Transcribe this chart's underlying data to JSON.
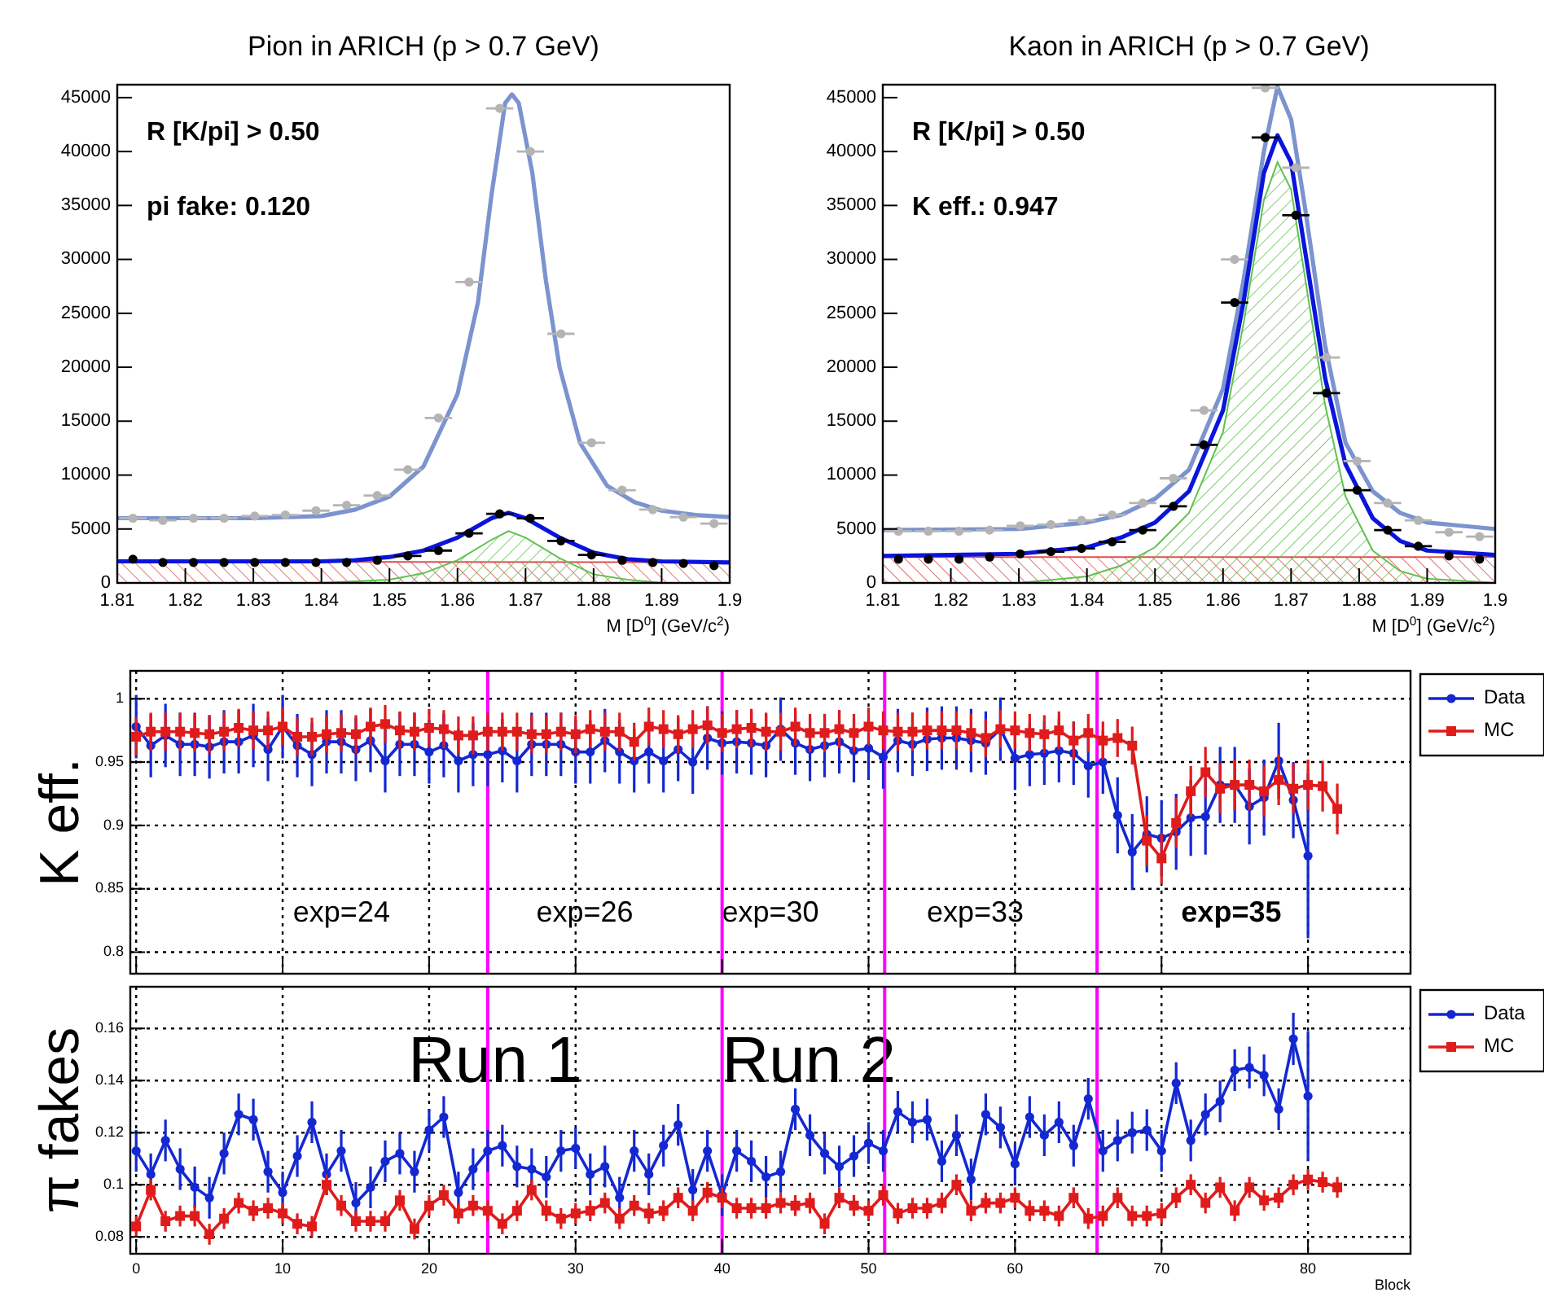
{
  "chart_data": [
    {
      "type": "scatter",
      "title": "Pion in ARICH (p > 0.7 GeV)",
      "xlabel": "M [D$^{0}$] (GeV/c$^{2}$)",
      "xlim": [
        1.81,
        1.9
      ],
      "xticks": [
        1.81,
        1.82,
        1.83,
        1.84,
        1.85,
        1.86,
        1.87,
        1.88,
        1.89,
        1.9
      ],
      "ylim": [
        0,
        46200
      ],
      "yticks": [
        0,
        5000,
        10000,
        15000,
        20000,
        25000,
        30000,
        35000,
        40000,
        45000
      ],
      "annotations": [
        "R [K/pi] > 0.50",
        "pi fake: 0.120"
      ],
      "x": [
        1.8123,
        1.8167,
        1.8212,
        1.8257,
        1.8302,
        1.8347,
        1.8392,
        1.8437,
        1.8482,
        1.8527,
        1.8572,
        1.8617,
        1.8662,
        1.8707,
        1.8752,
        1.8797,
        1.8842,
        1.8887,
        1.8932,
        1.8977
      ],
      "series": [
        {
          "type": "area",
          "color": "#d9534f",
          "x": [
            1.81,
            1.9
          ],
          "values": [
            2000,
            1900
          ]
        },
        {
          "type": "area",
          "color": "#5fc24f",
          "x": [
            1.81,
            1.84,
            1.85,
            1.855,
            1.86,
            1.865,
            1.8675,
            1.87,
            1.875,
            1.88,
            1.885,
            1.89,
            1.9
          ],
          "values": [
            0,
            0,
            300,
            900,
            2100,
            4000,
            4800,
            4200,
            2300,
            800,
            300,
            0,
            0
          ]
        },
        {
          "type": "line",
          "color": "#7b93cf",
          "x": [
            1.81,
            1.82,
            1.83,
            1.84,
            1.845,
            1.85,
            1.855,
            1.86,
            1.863,
            1.865,
            1.867,
            1.868,
            1.869,
            1.871,
            1.873,
            1.875,
            1.878,
            1.882,
            1.886,
            1.89,
            1.895,
            1.9
          ],
          "values": [
            6000,
            6000,
            6000,
            6200,
            6800,
            8000,
            10800,
            17500,
            26000,
            36000,
            44500,
            45300,
            44500,
            38000,
            28000,
            20000,
            13000,
            9000,
            7500,
            6700,
            6300,
            6100
          ]
        },
        {
          "type": "line",
          "color": "#0a14dc",
          "x": [
            1.81,
            1.83,
            1.84,
            1.845,
            1.85,
            1.855,
            1.86,
            1.865,
            1.8675,
            1.87,
            1.875,
            1.88,
            1.885,
            1.89,
            1.9
          ],
          "values": [
            2000,
            2000,
            2000,
            2100,
            2400,
            3000,
            4200,
            6000,
            6500,
            6000,
            4200,
            2800,
            2200,
            2000,
            1900
          ]
        },
        {
          "color": "#b4b4b4",
          "marker": "circle",
          "values": [
            6000,
            5800,
            6000,
            6000,
            6200,
            6300,
            6700,
            7200,
            8100,
            10500,
            15300,
            27900,
            44000,
            40000,
            23100,
            13000,
            8600,
            6800,
            6100,
            5500
          ],
          "xerrors": [
            0.002,
            0.002,
            0.002,
            0.002,
            0.002,
            0.002,
            0.002,
            0.002,
            0.002,
            0.002,
            0.002,
            0.002,
            0.002,
            0.002,
            0.002,
            0.002,
            0.002,
            0.002,
            0.002,
            0.002
          ]
        },
        {
          "color": "#000000",
          "marker": "circle",
          "values": [
            2200,
            1900,
            1900,
            1900,
            1900,
            1900,
            1900,
            1900,
            2100,
            2500,
            3000,
            4600,
            6400,
            6000,
            3900,
            2600,
            2100,
            1900,
            1800,
            1600
          ],
          "xerrors": [
            null,
            null,
            null,
            null,
            null,
            null,
            null,
            null,
            null,
            0.002,
            0.002,
            0.002,
            0.002,
            0.002,
            0.002,
            0.002,
            null,
            null,
            null,
            null
          ]
        }
      ]
    },
    {
      "type": "scatter",
      "title": "Kaon in ARICH (p > 0.7 GeV)",
      "xlabel": "M [D$^{0}$] (GeV/c$^{2}$)",
      "xlim": [
        1.81,
        1.9
      ],
      "xticks": [
        1.81,
        1.82,
        1.83,
        1.84,
        1.85,
        1.86,
        1.87,
        1.88,
        1.89,
        1.9
      ],
      "ylim": [
        0,
        46200
      ],
      "yticks": [
        0,
        5000,
        10000,
        15000,
        20000,
        25000,
        30000,
        35000,
        40000,
        45000
      ],
      "annotations": [
        "R [K/pi] > 0.50",
        "K eff.: 0.947"
      ],
      "x": [
        1.8123,
        1.8167,
        1.8212,
        1.8257,
        1.8302,
        1.8347,
        1.8392,
        1.8437,
        1.8482,
        1.8527,
        1.8572,
        1.8617,
        1.8662,
        1.8707,
        1.8752,
        1.8797,
        1.8842,
        1.8887,
        1.8932,
        1.8977
      ],
      "series": [
        {
          "type": "area",
          "color": "#d9534f",
          "x": [
            1.81,
            1.9
          ],
          "values": [
            2400,
            2400
          ]
        },
        {
          "type": "area",
          "color": "#5fc24f",
          "x": [
            1.81,
            1.83,
            1.84,
            1.845,
            1.85,
            1.855,
            1.86,
            1.863,
            1.866,
            1.868,
            1.87,
            1.872,
            1.875,
            1.878,
            1.882,
            1.886,
            1.89,
            1.9
          ],
          "values": [
            0,
            0,
            600,
            1600,
            3300,
            6500,
            14000,
            24000,
            35500,
            39000,
            36500,
            28500,
            16500,
            8000,
            3000,
            1100,
            400,
            0
          ]
        },
        {
          "type": "line",
          "color": "#7b93cf",
          "x": [
            1.81,
            1.83,
            1.84,
            1.845,
            1.85,
            1.855,
            1.86,
            1.863,
            1.866,
            1.868,
            1.87,
            1.872,
            1.875,
            1.878,
            1.882,
            1.886,
            1.89,
            1.9
          ],
          "values": [
            4900,
            5000,
            5600,
            6300,
            7800,
            10500,
            18000,
            28000,
            40000,
            46000,
            43000,
            35000,
            22000,
            13000,
            8500,
            6500,
            5600,
            5000
          ]
        },
        {
          "type": "line",
          "color": "#0a14dc",
          "x": [
            1.81,
            1.83,
            1.84,
            1.845,
            1.85,
            1.855,
            1.86,
            1.863,
            1.866,
            1.868,
            1.87,
            1.872,
            1.875,
            1.878,
            1.882,
            1.886,
            1.89,
            1.9
          ],
          "values": [
            2500,
            2700,
            3300,
            4200,
            5600,
            8500,
            16000,
            26000,
            38000,
            41500,
            39000,
            31000,
            19000,
            11000,
            6000,
            3900,
            3000,
            2600
          ]
        },
        {
          "color": "#b4b4b4",
          "marker": "circle",
          "values": [
            4800,
            4800,
            4800,
            4900,
            5300,
            5400,
            5800,
            6300,
            7400,
            9700,
            16000,
            30000,
            45900,
            38500,
            20900,
            11300,
            7400,
            5800,
            4700,
            4300
          ],
          "xerrors": [
            0.002,
            0.002,
            0.002,
            0.002,
            0.002,
            0.002,
            0.002,
            0.002,
            0.002,
            0.002,
            0.002,
            0.002,
            0.002,
            0.002,
            0.002,
            0.002,
            0.002,
            0.002,
            0.002,
            0.002
          ]
        },
        {
          "color": "#000000",
          "marker": "circle",
          "values": [
            2200,
            2200,
            2200,
            2400,
            2700,
            2900,
            3200,
            3800,
            4900,
            7100,
            12800,
            26000,
            41300,
            34100,
            17600,
            8600,
            4900,
            3400,
            2500,
            2200
          ],
          "xerrors": [
            null,
            null,
            null,
            null,
            null,
            0.002,
            0.002,
            0.002,
            0.002,
            0.002,
            0.002,
            0.002,
            0.002,
            0.002,
            0.002,
            0.002,
            0.002,
            0.002,
            null,
            null
          ]
        }
      ]
    },
    {
      "type": "line",
      "ylabel": "K eff.",
      "xlim": [
        -0.4,
        87
      ],
      "xticks": [
        0,
        10,
        20,
        30,
        40,
        50,
        60,
        70,
        80
      ],
      "ylim": [
        0.783,
        1.022
      ],
      "yticks": [
        0.8,
        0.85,
        0.9,
        0.95,
        1
      ],
      "tick_labels": "y",
      "grid": true,
      "legend": "right",
      "ref_lines": [
        {
          "axis": "x",
          "value": 24,
          "color": "#ff00ff"
        },
        {
          "axis": "x",
          "value": 40,
          "color": "#ff00ff"
        },
        {
          "axis": "x",
          "value": 51.1,
          "color": "#ff00ff"
        },
        {
          "axis": "x",
          "value": 65.6,
          "color": "#ff00ff"
        }
      ],
      "annotations": [
        "exp=24",
        "exp=26",
        "exp=30",
        "exp=33",
        "exp=35"
      ],
      "x": [
        0,
        1,
        2,
        3,
        4,
        5,
        6,
        7,
        8,
        9,
        10,
        11,
        12,
        13,
        14,
        15,
        16,
        17,
        18,
        19,
        20,
        21,
        22,
        23,
        24,
        25,
        26,
        27,
        28,
        29,
        30,
        31,
        32,
        33,
        34,
        35,
        36,
        37,
        38,
        39,
        40,
        41,
        42,
        43,
        44,
        45,
        46,
        47,
        48,
        49,
        50,
        51,
        52,
        53,
        54,
        55,
        56,
        57,
        58,
        59,
        60,
        61,
        62,
        63,
        64,
        65,
        66,
        67,
        68,
        69,
        70,
        71,
        72,
        73,
        74,
        75,
        76,
        77,
        78,
        79,
        80,
        81,
        82
      ],
      "series": [
        {
          "name": "Data",
          "color": "#1428d2",
          "marker": "circle",
          "values": [
            0.978,
            0.963,
            0.971,
            0.964,
            0.964,
            0.962,
            0.966,
            0.966,
            0.971,
            0.96,
            0.978,
            0.963,
            0.956,
            0.966,
            0.966,
            0.96,
            0.967,
            0.951,
            0.964,
            0.964,
            0.958,
            0.963,
            0.951,
            0.956,
            0.956,
            0.959,
            0.951,
            0.964,
            0.964,
            0.964,
            0.958,
            0.958,
            0.967,
            0.958,
            0.951,
            0.958,
            0.951,
            0.96,
            0.95,
            0.969,
            0.965,
            0.966,
            0.965,
            0.963,
            0.976,
            0.965,
            0.96,
            0.963,
            0.966,
            0.959,
            0.961,
            0.954,
            0.967,
            0.964,
            0.968,
            0.969,
            0.969,
            0.967,
            0.965,
            0.976,
            0.953,
            0.956,
            0.957,
            0.959,
            0.957,
            0.947,
            0.95,
            0.908,
            0.879,
            0.893,
            0.89,
            0.895,
            0.906,
            0.907,
            0.932,
            0.932,
            0.915,
            0.922,
            0.951,
            0.92,
            0.876,
            null,
            null
          ],
          "errors": [
            0.025,
            0.025,
            0.025,
            0.025,
            0.025,
            0.025,
            0.025,
            0.025,
            0.025,
            0.025,
            0.025,
            0.025,
            0.025,
            0.025,
            0.025,
            0.025,
            0.025,
            0.025,
            0.025,
            0.025,
            0.025,
            0.025,
            0.025,
            0.025,
            0.025,
            0.025,
            0.025,
            0.025,
            0.025,
            0.025,
            0.025,
            0.025,
            0.025,
            0.025,
            0.025,
            0.025,
            0.025,
            0.025,
            0.025,
            0.025,
            0.025,
            0.025,
            0.025,
            0.025,
            0.025,
            0.025,
            0.025,
            0.025,
            0.025,
            0.025,
            0.025,
            0.025,
            0.025,
            0.025,
            0.025,
            0.025,
            0.025,
            0.025,
            0.025,
            0.025,
            0.025,
            0.025,
            0.025,
            0.025,
            0.025,
            0.025,
            0.025,
            0.03,
            0.03,
            0.03,
            0.03,
            0.03,
            0.03,
            0.03,
            0.03,
            0.03,
            0.03,
            0.03,
            0.03,
            0.03,
            0.065,
            null,
            null
          ]
        },
        {
          "name": "MC",
          "color": "#e01b1b",
          "marker": "square",
          "values": [
            0.97,
            0.974,
            0.974,
            0.974,
            0.973,
            0.972,
            0.974,
            0.977,
            0.975,
            0.975,
            0.978,
            0.97,
            0.97,
            0.972,
            0.973,
            0.972,
            0.978,
            0.98,
            0.975,
            0.974,
            0.977,
            0.976,
            0.971,
            0.971,
            0.974,
            0.974,
            0.974,
            0.972,
            0.972,
            0.974,
            0.972,
            0.976,
            0.974,
            0.974,
            0.966,
            0.978,
            0.976,
            0.972,
            0.976,
            0.979,
            0.973,
            0.976,
            0.977,
            0.974,
            0.974,
            0.978,
            0.973,
            0.973,
            0.976,
            0.973,
            0.978,
            0.975,
            0.974,
            0.974,
            0.975,
            0.975,
            0.975,
            0.973,
            0.969,
            0.976,
            0.975,
            0.973,
            0.972,
            0.975,
            0.967,
            0.973,
            0.967,
            0.969,
            0.963,
            0.888,
            0.874,
            0.902,
            0.927,
            0.942,
            0.929,
            0.932,
            0.932,
            0.927,
            0.936,
            0.929,
            0.932,
            0.931,
            0.913
          ],
          "errors": [
            0.015,
            0.015,
            0.015,
            0.015,
            0.015,
            0.015,
            0.015,
            0.015,
            0.015,
            0.015,
            0.015,
            0.015,
            0.015,
            0.015,
            0.015,
            0.015,
            0.015,
            0.015,
            0.015,
            0.015,
            0.015,
            0.015,
            0.015,
            0.015,
            0.015,
            0.015,
            0.015,
            0.015,
            0.015,
            0.015,
            0.015,
            0.015,
            0.015,
            0.015,
            0.015,
            0.015,
            0.015,
            0.015,
            0.015,
            0.015,
            0.015,
            0.015,
            0.015,
            0.015,
            0.015,
            0.015,
            0.015,
            0.015,
            0.015,
            0.015,
            0.015,
            0.015,
            0.015,
            0.015,
            0.015,
            0.015,
            0.015,
            0.015,
            0.015,
            0.015,
            0.015,
            0.015,
            0.015,
            0.015,
            0.015,
            0.015,
            0.015,
            0.015,
            0.015,
            0.02,
            0.02,
            0.02,
            0.02,
            0.02,
            0.02,
            0.02,
            0.02,
            0.02,
            0.02,
            0.02,
            0.02,
            0.02,
            0.02
          ]
        }
      ]
    },
    {
      "type": "line",
      "ylabel": "π fakes",
      "xlabel": "Block",
      "xlim": [
        -0.4,
        87
      ],
      "xticks": [
        0,
        10,
        20,
        30,
        40,
        50,
        60,
        70,
        80
      ],
      "ylim": [
        0.0735,
        0.176
      ],
      "yticks": [
        0.08,
        0.1,
        0.12,
        0.14,
        0.16
      ],
      "grid": true,
      "legend": "right",
      "ref_lines": [
        {
          "axis": "x",
          "value": 24,
          "color": "#ff00ff"
        },
        {
          "axis": "x",
          "value": 40,
          "color": "#ff00ff"
        },
        {
          "axis": "x",
          "value": 51.1,
          "color": "#ff00ff"
        },
        {
          "axis": "x",
          "value": 65.6,
          "color": "#ff00ff"
        }
      ],
      "annotations": [
        "Run 1",
        "Run 2"
      ],
      "x": [
        0,
        1,
        2,
        3,
        4,
        5,
        6,
        7,
        8,
        9,
        10,
        11,
        12,
        13,
        14,
        15,
        16,
        17,
        18,
        19,
        20,
        21,
        22,
        23,
        24,
        25,
        26,
        27,
        28,
        29,
        30,
        31,
        32,
        33,
        34,
        35,
        36,
        37,
        38,
        39,
        40,
        41,
        42,
        43,
        44,
        45,
        46,
        47,
        48,
        49,
        50,
        51,
        52,
        53,
        54,
        55,
        56,
        57,
        58,
        59,
        60,
        61,
        62,
        63,
        64,
        65,
        66,
        67,
        68,
        69,
        70,
        71,
        72,
        73,
        74,
        75,
        76,
        77,
        78,
        79,
        80,
        81,
        82
      ],
      "series": [
        {
          "name": "Data",
          "color": "#1428d2",
          "marker": "circle",
          "values": [
            0.113,
            0.104,
            0.117,
            0.106,
            0.099,
            0.095,
            0.112,
            0.127,
            0.125,
            0.105,
            0.097,
            0.111,
            0.124,
            0.104,
            0.113,
            0.093,
            0.099,
            0.109,
            0.112,
            0.105,
            0.121,
            0.126,
            0.097,
            0.106,
            0.113,
            0.115,
            0.107,
            0.106,
            0.103,
            0.113,
            0.114,
            0.104,
            0.107,
            0.095,
            0.113,
            0.104,
            0.115,
            0.123,
            0.098,
            0.113,
            0.096,
            0.113,
            0.109,
            0.103,
            0.105,
            0.129,
            0.119,
            0.112,
            0.107,
            0.111,
            0.116,
            0.113,
            0.128,
            0.124,
            0.125,
            0.109,
            0.119,
            0.102,
            0.127,
            0.122,
            0.108,
            0.126,
            0.119,
            0.124,
            0.115,
            0.133,
            0.113,
            0.117,
            0.12,
            0.121,
            0.113,
            0.139,
            0.117,
            0.127,
            0.132,
            0.144,
            0.145,
            0.142,
            0.129,
            0.156,
            0.134,
            null,
            null
          ],
          "errors": [
            0.008,
            0.008,
            0.008,
            0.008,
            0.008,
            0.008,
            0.008,
            0.008,
            0.008,
            0.008,
            0.008,
            0.008,
            0.008,
            0.008,
            0.008,
            0.008,
            0.008,
            0.008,
            0.008,
            0.008,
            0.008,
            0.008,
            0.008,
            0.008,
            0.008,
            0.008,
            0.008,
            0.008,
            0.008,
            0.008,
            0.008,
            0.008,
            0.008,
            0.008,
            0.008,
            0.008,
            0.008,
            0.008,
            0.008,
            0.008,
            0.008,
            0.008,
            0.008,
            0.008,
            0.008,
            0.008,
            0.008,
            0.008,
            0.008,
            0.008,
            0.008,
            0.008,
            0.008,
            0.008,
            0.008,
            0.008,
            0.008,
            0.008,
            0.008,
            0.008,
            0.008,
            0.008,
            0.008,
            0.008,
            0.008,
            0.008,
            0.008,
            0.008,
            0.008,
            0.008,
            0.008,
            0.008,
            0.008,
            0.008,
            0.008,
            0.008,
            0.008,
            0.008,
            0.008,
            0.01,
            0.025,
            null,
            null
          ]
        },
        {
          "name": "MC",
          "color": "#e01b1b",
          "marker": "square",
          "values": [
            0.084,
            0.098,
            0.086,
            0.088,
            0.088,
            0.081,
            0.087,
            0.093,
            0.09,
            0.091,
            0.089,
            0.085,
            0.084,
            0.1,
            0.092,
            0.086,
            0.086,
            0.086,
            0.094,
            0.083,
            0.092,
            0.096,
            0.089,
            0.092,
            0.09,
            0.085,
            0.09,
            0.098,
            0.09,
            0.087,
            0.089,
            0.09,
            0.093,
            0.087,
            0.092,
            0.089,
            0.09,
            0.095,
            0.09,
            0.097,
            0.095,
            0.091,
            0.091,
            0.091,
            0.093,
            0.092,
            0.093,
            0.085,
            0.095,
            0.092,
            0.09,
            0.096,
            0.089,
            0.091,
            0.091,
            0.093,
            0.1,
            0.09,
            0.093,
            0.093,
            0.095,
            0.09,
            0.09,
            0.088,
            0.095,
            0.087,
            0.088,
            0.095,
            0.088,
            0.088,
            0.089,
            0.095,
            0.1,
            0.093,
            0.099,
            0.09,
            0.099,
            0.094,
            0.095,
            0.1,
            0.102,
            0.101,
            0.099
          ],
          "errors": [
            0.004,
            0.004,
            0.004,
            0.004,
            0.004,
            0.004,
            0.004,
            0.004,
            0.004,
            0.004,
            0.004,
            0.004,
            0.004,
            0.004,
            0.004,
            0.004,
            0.004,
            0.004,
            0.004,
            0.004,
            0.004,
            0.004,
            0.004,
            0.004,
            0.004,
            0.004,
            0.004,
            0.004,
            0.004,
            0.004,
            0.004,
            0.004,
            0.004,
            0.004,
            0.004,
            0.004,
            0.004,
            0.004,
            0.004,
            0.004,
            0.004,
            0.004,
            0.004,
            0.004,
            0.004,
            0.004,
            0.004,
            0.004,
            0.004,
            0.004,
            0.004,
            0.004,
            0.004,
            0.004,
            0.004,
            0.004,
            0.004,
            0.004,
            0.004,
            0.004,
            0.004,
            0.004,
            0.004,
            0.004,
            0.004,
            0.004,
            0.004,
            0.004,
            0.004,
            0.004,
            0.004,
            0.004,
            0.004,
            0.004,
            0.004,
            0.004,
            0.004,
            0.004,
            0.004,
            0.004,
            0.004,
            0.004,
            0.004
          ]
        }
      ]
    }
  ]
}
